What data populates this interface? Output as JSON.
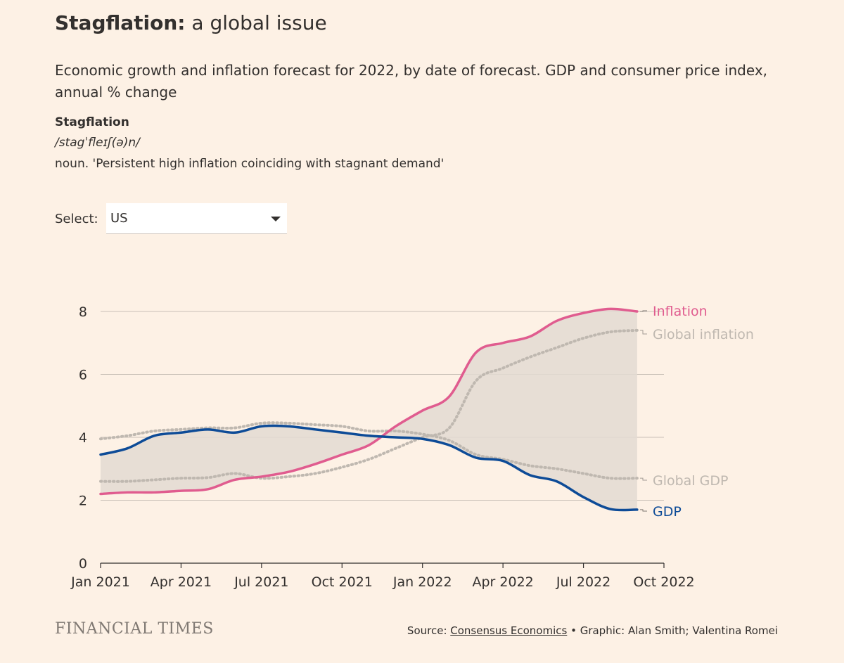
{
  "header": {
    "title_bold": "Stagflation:",
    "title_rest": " a global issue",
    "subtitle": "Economic growth and inflation forecast for 2022, by date of forecast. GDP and consumer price index, annual % change",
    "term": "Stagflation",
    "pronunciation": "/stagˈfleɪʃ(ə)n/",
    "definition": "noun. 'Persistent high inflation coinciding with stagnant demand'"
  },
  "selector": {
    "label": "Select:",
    "value": "US"
  },
  "footer": {
    "logo": "FINANCIAL TIMES",
    "source_prefix": "Source: ",
    "source_link": "Consensus Economics",
    "credits": " • Graphic: Alan Smith; Valentina Romei"
  },
  "chart_data": {
    "type": "line",
    "title": "",
    "xlabel": "",
    "ylabel": "",
    "x_ticks": [
      "Jan 2021",
      "Apr 2021",
      "Jul 2021",
      "Oct 2021",
      "Jan 2022",
      "Apr 2022",
      "Jul 2022",
      "Oct 2022"
    ],
    "y_ticks": [
      "0",
      "2",
      "4",
      "6",
      "8"
    ],
    "xlim": [
      "2021-01",
      "2022-10"
    ],
    "ylim": [
      0,
      8.6
    ],
    "grid": true,
    "shaded_band": "between Inflation and GDP",
    "legend_placement": "inline labels at right end of lines",
    "series": [
      {
        "name": "Inflation",
        "color": "#e05c8f",
        "style": "solid",
        "x": [
          "2021-01",
          "2021-02",
          "2021-03",
          "2021-04",
          "2021-05",
          "2021-06",
          "2021-07",
          "2021-08",
          "2021-09",
          "2021-10",
          "2021-11",
          "2021-12",
          "2022-01",
          "2022-02",
          "2022-03",
          "2022-04",
          "2022-05",
          "2022-06",
          "2022-07",
          "2022-08",
          "2022-09"
        ],
        "values": [
          2.2,
          2.25,
          2.25,
          2.3,
          2.35,
          2.65,
          2.75,
          2.9,
          3.15,
          3.45,
          3.75,
          4.35,
          4.85,
          5.3,
          6.7,
          7.0,
          7.2,
          7.7,
          7.95,
          8.08,
          8.0
        ]
      },
      {
        "name": "Global inflation",
        "color": "#bfb8b0",
        "style": "dotted",
        "x": [
          "2021-01",
          "2021-02",
          "2021-03",
          "2021-04",
          "2021-05",
          "2021-06",
          "2021-07",
          "2021-08",
          "2021-09",
          "2021-10",
          "2021-11",
          "2021-12",
          "2022-01",
          "2022-02",
          "2022-03",
          "2022-04",
          "2022-05",
          "2022-06",
          "2022-07",
          "2022-08",
          "2022-09"
        ],
        "values": [
          2.6,
          2.6,
          2.65,
          2.7,
          2.72,
          2.85,
          2.7,
          2.75,
          2.85,
          3.05,
          3.3,
          3.65,
          4.0,
          4.3,
          5.8,
          6.2,
          6.55,
          6.85,
          7.15,
          7.35,
          7.4
        ]
      },
      {
        "name": "Global GDP",
        "color": "#bfb8b0",
        "style": "dotted",
        "x": [
          "2021-01",
          "2021-02",
          "2021-03",
          "2021-04",
          "2021-05",
          "2021-06",
          "2021-07",
          "2021-08",
          "2021-09",
          "2021-10",
          "2021-11",
          "2021-12",
          "2022-01",
          "2022-02",
          "2022-03",
          "2022-04",
          "2022-05",
          "2022-06",
          "2022-07",
          "2022-08",
          "2022-09"
        ],
        "values": [
          3.95,
          4.05,
          4.2,
          4.25,
          4.3,
          4.3,
          4.45,
          4.45,
          4.4,
          4.35,
          4.2,
          4.2,
          4.1,
          3.9,
          3.45,
          3.3,
          3.1,
          3.0,
          2.85,
          2.7,
          2.7
        ]
      },
      {
        "name": "GDP",
        "color": "#0d4b97",
        "style": "solid",
        "x": [
          "2021-01",
          "2021-02",
          "2021-03",
          "2021-04",
          "2021-05",
          "2021-06",
          "2021-07",
          "2021-08",
          "2021-09",
          "2021-10",
          "2021-11",
          "2021-12",
          "2022-01",
          "2022-02",
          "2022-03",
          "2022-04",
          "2022-05",
          "2022-06",
          "2022-07",
          "2022-08",
          "2022-09"
        ],
        "values": [
          3.45,
          3.65,
          4.05,
          4.15,
          4.25,
          4.15,
          4.35,
          4.35,
          4.25,
          4.15,
          4.05,
          4.0,
          3.95,
          3.75,
          3.35,
          3.25,
          2.8,
          2.6,
          2.1,
          1.72,
          1.7
        ]
      }
    ],
    "colors": {
      "band": "#e3dad2",
      "grid": "#c9c0b7",
      "axis": "#33302e"
    }
  }
}
